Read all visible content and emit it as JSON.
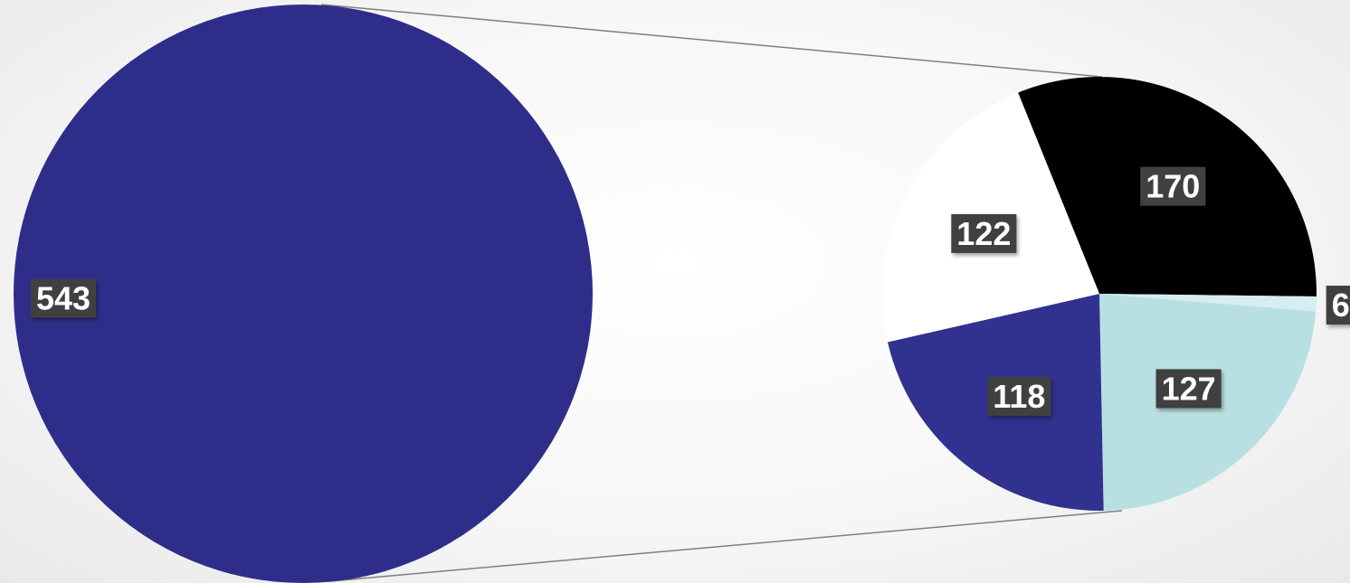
{
  "chart_data": {
    "type": "pie",
    "subtype": "pie-of-pie",
    "title": "",
    "main_pie": {
      "slices": [
        {
          "value": 543,
          "label": "543",
          "color": "#2e2e8a"
        }
      ]
    },
    "secondary_pie": {
      "slices": [
        {
          "value": 170,
          "label": "170",
          "color": "#000000"
        },
        {
          "value": 6,
          "label": "6",
          "color": "#d6eef0"
        },
        {
          "value": 127,
          "label": "127",
          "color": "#b8e0e3"
        },
        {
          "value": 118,
          "label": "118",
          "color": "#31318f"
        },
        {
          "value": 122,
          "label": "122",
          "color": "#ffffff"
        }
      ]
    },
    "connector_color": "#7f7f7f",
    "legend": "none"
  }
}
